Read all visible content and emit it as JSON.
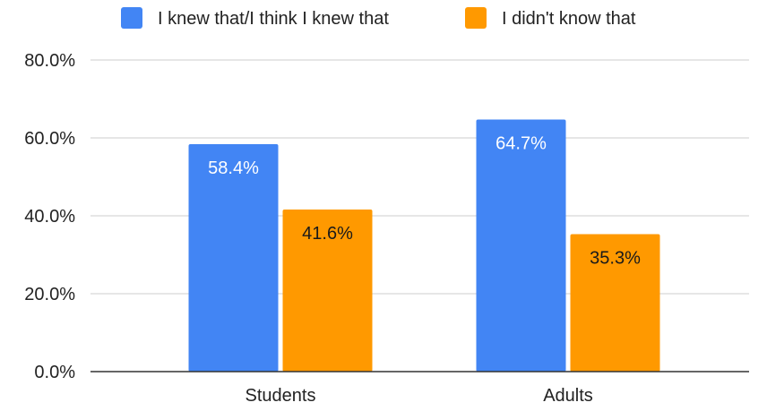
{
  "chart_data": {
    "type": "bar",
    "categories": [
      "Students",
      "Adults"
    ],
    "series": [
      {
        "name": "I knew that/I think I knew that",
        "values": [
          58.4,
          64.7
        ],
        "labels": [
          "58.4%",
          "64.7%"
        ],
        "color": "#4285F4",
        "label_color": "#ffffff"
      },
      {
        "name": "I didn't know that",
        "values": [
          41.6,
          35.3
        ],
        "labels": [
          "41.6%",
          "35.3%"
        ],
        "color": "#FF9900",
        "label_color": "#1a1a1a"
      }
    ],
    "y_ticks": [
      {
        "value": 0,
        "label": "0.0%"
      },
      {
        "value": 20,
        "label": "20.0%"
      },
      {
        "value": 40,
        "label": "40.0%"
      },
      {
        "value": 60,
        "label": "60.0%"
      },
      {
        "value": 80,
        "label": "80.0%"
      }
    ],
    "ylim": [
      0,
      80
    ],
    "legend_position": "top",
    "grid": true,
    "gridline_color": "#cccccc",
    "axis_color": "#333333"
  }
}
